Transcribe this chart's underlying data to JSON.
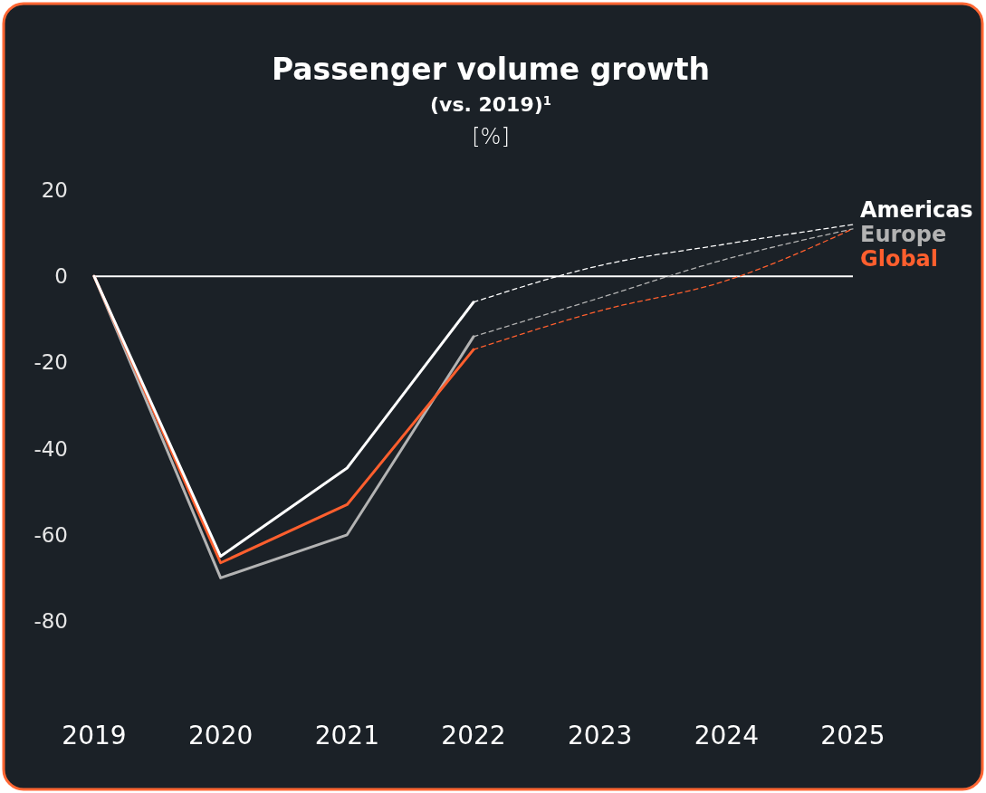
{
  "chart_data": {
    "type": "line",
    "title": "Passenger volume growth",
    "subtitle": "(vs. 2019)$^{1}$",
    "ylabel": "[%]",
    "xlim": [
      2019,
      2025
    ],
    "xticks": [
      2019,
      2020,
      2021,
      2022,
      2023,
      2024,
      2025
    ],
    "ylim": [
      -80,
      20
    ],
    "yticks": [
      20,
      0,
      -20,
      -40,
      -60,
      -80
    ],
    "grid": false,
    "legend": false,
    "marker": "none",
    "ref_lines": [
      {
        "axis": "y",
        "value": 0,
        "color": "#ffffff"
      }
    ],
    "series": [
      {
        "color": "#b3b3b3",
        "line_style": "solid",
        "x": [
          2019,
          2020,
          2021,
          2022
        ],
        "values": [
          0,
          -70,
          -60,
          -14
        ]
      },
      {
        "color": "#ff5f2e",
        "line_style": "solid",
        "x": [
          2019,
          2020,
          2021,
          2022
        ],
        "values": [
          0,
          -66.5,
          -53,
          -17
        ]
      },
      {
        "color": "#ffffff",
        "line_style": "solid",
        "x": [
          2019,
          2020,
          2021,
          2022
        ],
        "values": [
          0,
          -65,
          -44.5,
          -6
        ]
      },
      {
        "name": "Americas",
        "color": "#ffffff",
        "line_style": "dashed",
        "x": [
          2022,
          2023,
          2024,
          2025
        ],
        "values": [
          -6,
          2.5,
          7.5,
          12
        ]
      },
      {
        "name": "Europe",
        "color": "#b3b3b3",
        "line_style": "dashed",
        "x": [
          2022,
          2023,
          2024,
          2025
        ],
        "values": [
          -14,
          -5,
          4,
          11
        ]
      },
      {
        "name": "Global",
        "color": "#ff5f2e",
        "line_style": "dashed",
        "x": [
          2022,
          2023,
          2024,
          2025
        ],
        "values": [
          -17,
          -8,
          -1,
          11
        ]
      }
    ]
  }
}
